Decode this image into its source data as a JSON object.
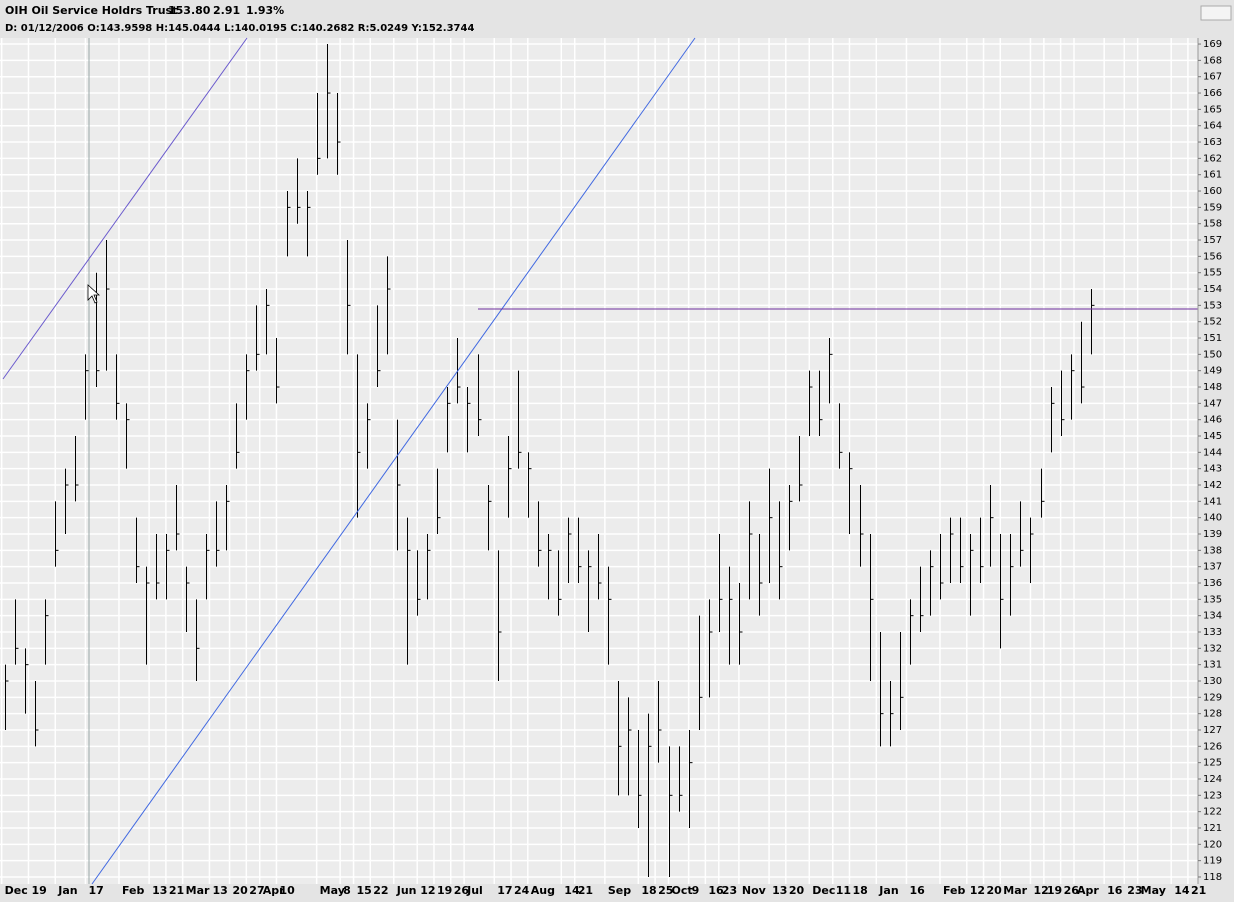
{
  "chart_data": {
    "type": "hlc",
    "title": "OIH Oil Service Holdrs Trust",
    "price": "153.80",
    "change": "2.91",
    "change_pct": "1.93%",
    "change_color": "#00b000",
    "subtitle": "D: 01/12/2006 O:143.9598 H:145.0444 L:140.0195 C:140.2682 R:5.0249 Y:152.3744",
    "color": "#000000",
    "grid": true,
    "xlim": [
      -1.5,
      356
    ],
    "ylim": [
      117.57,
      169.37
    ],
    "x": [
      0,
      3,
      6,
      9,
      12,
      15,
      18,
      21,
      24,
      27,
      30,
      33,
      36,
      39,
      42,
      45,
      48,
      51,
      54,
      57,
      60,
      63,
      66,
      69,
      72,
      75,
      78,
      81,
      84,
      87,
      90,
      93,
      96,
      99,
      102,
      105,
      108,
      111,
      114,
      117,
      120,
      123,
      126,
      129,
      132,
      135,
      138,
      141,
      144,
      147,
      150,
      153,
      156,
      159,
      162,
      165,
      168,
      171,
      174,
      177,
      180,
      183,
      186,
      189,
      192,
      195,
      198,
      201,
      204,
      207,
      210,
      213,
      216,
      219,
      222,
      225,
      228,
      231,
      234,
      237,
      240,
      243,
      246,
      249,
      252,
      255,
      258,
      261,
      264,
      267,
      270,
      273,
      276,
      279,
      282,
      285,
      288,
      291,
      294,
      297,
      300,
      303,
      306,
      309,
      312,
      315,
      318,
      321,
      324
    ],
    "high": [
      131,
      135,
      132,
      130,
      135,
      141,
      143,
      145,
      150,
      155,
      157,
      150,
      147,
      140,
      137,
      139,
      139,
      142,
      137,
      135,
      139,
      141,
      142,
      147,
      150,
      153,
      154,
      151,
      160,
      162,
      160,
      166,
      169,
      166,
      157,
      150,
      147,
      153,
      156,
      146,
      140,
      138,
      139,
      143,
      148,
      151,
      148,
      150,
      142,
      138,
      145,
      149,
      144,
      141,
      139,
      138,
      140,
      140,
      138,
      139,
      137,
      130,
      129,
      127,
      128,
      130,
      126,
      126,
      127,
      134,
      135,
      139,
      137,
      136,
      141,
      139,
      143,
      141,
      142,
      145,
      149,
      149,
      151,
      147,
      144,
      142,
      139,
      133,
      130,
      133,
      135,
      137,
      138,
      139,
      140,
      140,
      139,
      140,
      142,
      139,
      139,
      141,
      140,
      143,
      148,
      149,
      150,
      152,
      154
    ],
    "low": [
      127,
      131,
      128,
      126,
      131,
      137,
      139,
      141,
      146,
      148,
      149,
      146,
      143,
      136,
      131,
      135,
      135,
      138,
      133,
      130,
      135,
      137,
      138,
      143,
      146,
      149,
      150,
      147,
      156,
      158,
      156,
      161,
      162,
      161,
      150,
      140,
      143,
      148,
      150,
      138,
      131,
      134,
      135,
      139,
      144,
      147,
      144,
      145,
      138,
      130,
      140,
      143,
      140,
      137,
      135,
      134,
      136,
      136,
      133,
      135,
      131,
      123,
      123,
      121,
      118,
      125,
      118,
      122,
      121,
      127,
      129,
      133,
      131,
      131,
      135,
      134,
      136,
      135,
      138,
      141,
      145,
      145,
      147,
      143,
      139,
      137,
      130,
      126,
      126,
      127,
      131,
      133,
      134,
      135,
      136,
      136,
      134,
      136,
      137,
      132,
      134,
      137,
      136,
      140,
      144,
      145,
      146,
      147,
      150
    ],
    "close": [
      130,
      132,
      131,
      127,
      134,
      138,
      142,
      142,
      149,
      149,
      154,
      147,
      146,
      137,
      136,
      136,
      138,
      139,
      136,
      132,
      138,
      138,
      141,
      144,
      149,
      150,
      153,
      148,
      159,
      159,
      159,
      162,
      166,
      163,
      153,
      144,
      146,
      149,
      154,
      142,
      138,
      135,
      138,
      140,
      147,
      148,
      147,
      146,
      141,
      133,
      143,
      144,
      143,
      138,
      138,
      135,
      139,
      137,
      137,
      136,
      135,
      126,
      127,
      123,
      126,
      127,
      123,
      123,
      125,
      129,
      133,
      135,
      135,
      133,
      139,
      136,
      140,
      137,
      141,
      142,
      148,
      146,
      150,
      144,
      143,
      139,
      135,
      128,
      128,
      129,
      134,
      134,
      137,
      136,
      139,
      137,
      138,
      137,
      140,
      135,
      137,
      138,
      139,
      141,
      147,
      146,
      149,
      148,
      153
    ],
    "yticks": [
      118,
      119,
      120,
      121,
      122,
      123,
      124,
      125,
      126,
      127,
      128,
      129,
      130,
      131,
      132,
      133,
      134,
      135,
      136,
      137,
      138,
      139,
      140,
      141,
      142,
      143,
      144,
      145,
      146,
      147,
      148,
      149,
      150,
      151,
      152,
      153,
      154,
      155,
      156,
      157,
      158,
      159,
      160,
      161,
      162,
      163,
      164,
      165,
      166,
      167,
      168,
      169
    ],
    "xticks": [
      {
        "value": -1,
        "label": "Dec"
      },
      {
        "value": 7,
        "label": "19"
      },
      {
        "value": 15,
        "label": "Jan"
      },
      {
        "value": 24,
        "label": "17"
      },
      {
        "value": 34,
        "label": "Feb"
      },
      {
        "value": 43,
        "label": "13"
      },
      {
        "value": 48,
        "label": "21"
      },
      {
        "value": 53,
        "label": "Mar"
      },
      {
        "value": 61,
        "label": "13"
      },
      {
        "value": 67,
        "label": "20"
      },
      {
        "value": 72,
        "label": "27"
      },
      {
        "value": 76,
        "label": "Apr"
      },
      {
        "value": 81,
        "label": "10"
      },
      {
        "value": 93,
        "label": "May"
      },
      {
        "value": 100,
        "label": "8"
      },
      {
        "value": 104,
        "label": "15"
      },
      {
        "value": 109,
        "label": "22"
      },
      {
        "value": 116,
        "label": "Jun"
      },
      {
        "value": 123,
        "label": "12"
      },
      {
        "value": 128,
        "label": "19"
      },
      {
        "value": 133,
        "label": "26"
      },
      {
        "value": 137,
        "label": "Jul"
      },
      {
        "value": 146,
        "label": "17"
      },
      {
        "value": 151,
        "label": "24"
      },
      {
        "value": 156,
        "label": "Aug"
      },
      {
        "value": 166,
        "label": "14"
      },
      {
        "value": 170,
        "label": "21"
      },
      {
        "value": 179,
        "label": "Sep"
      },
      {
        "value": 189,
        "label": "18"
      },
      {
        "value": 194,
        "label": "25"
      },
      {
        "value": 198,
        "label": "Oct"
      },
      {
        "value": 204,
        "label": "9"
      },
      {
        "value": 209,
        "label": "16"
      },
      {
        "value": 213,
        "label": "23"
      },
      {
        "value": 219,
        "label": "Nov"
      },
      {
        "value": 228,
        "label": "13"
      },
      {
        "value": 233,
        "label": "20"
      },
      {
        "value": 240,
        "label": "Dec"
      },
      {
        "value": 247,
        "label": "11"
      },
      {
        "value": 252,
        "label": "18"
      },
      {
        "value": 260,
        "label": "Jan"
      },
      {
        "value": 269,
        "label": "16"
      },
      {
        "value": 279,
        "label": "Feb"
      },
      {
        "value": 287,
        "label": "12"
      },
      {
        "value": 292,
        "label": "20"
      },
      {
        "value": 297,
        "label": "Mar"
      },
      {
        "value": 306,
        "label": "12"
      },
      {
        "value": 310,
        "label": "19"
      },
      {
        "value": 315,
        "label": "26"
      },
      {
        "value": 319,
        "label": "Apr"
      },
      {
        "value": 328,
        "label": "16"
      },
      {
        "value": 334,
        "label": "23"
      },
      {
        "value": 338,
        "label": "May"
      },
      {
        "value": 348,
        "label": "14"
      },
      {
        "value": 353,
        "label": "21"
      }
    ]
  }
}
